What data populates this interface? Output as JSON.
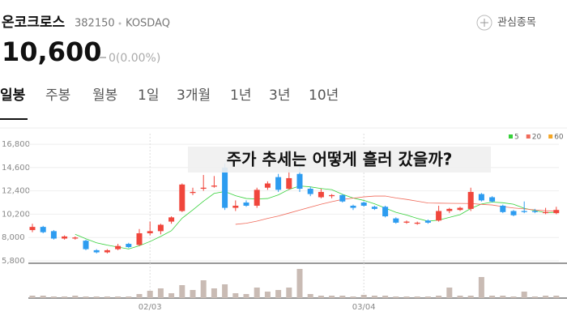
{
  "header": {
    "name": "온코크로스",
    "code": "382150",
    "market": "KOSDAQ",
    "watch": "관심종목",
    "price": "10,600",
    "change": "0(0.00%)"
  },
  "tabs": [
    "일봉",
    "주봉",
    "월봉",
    "1일",
    "3개월",
    "1년",
    "3년",
    "10년"
  ],
  "chart_data": {
    "type": "candlestick",
    "title": "주가 추세는 어떻게 흘러 갔을까?",
    "categories": [
      null,
      null,
      null,
      null,
      null,
      null,
      null,
      null,
      null,
      null,
      null,
      "02/03",
      null,
      null,
      null,
      null,
      null,
      null,
      null,
      null,
      null,
      null,
      null,
      null,
      null,
      null,
      null,
      null,
      null,
      null,
      null,
      "03/04",
      null,
      null,
      null,
      null,
      null,
      null,
      null,
      null,
      null,
      null,
      null,
      null,
      null,
      null,
      null,
      null,
      null,
      null
    ],
    "open": [
      8700,
      9000,
      8600,
      7900,
      7900,
      7700,
      6800,
      6600,
      6900,
      7400,
      7300,
      8400,
      8600,
      9500,
      10500,
      12200,
      12600,
      12800,
      14600,
      10800,
      11300,
      11000,
      12700,
      13700,
      12600,
      14000,
      12600,
      11800,
      11900,
      12000,
      11000,
      11300,
      10900,
      10900,
      9800,
      9400,
      9300,
      9600,
      9600,
      10500,
      10600,
      10700,
      12100,
      11800,
      11000,
      10500,
      10500,
      10500,
      10300,
      10300
    ],
    "high": [
      9300,
      9100,
      8700,
      8200,
      8100,
      7800,
      6900,
      6900,
      7400,
      7500,
      8800,
      9500,
      9300,
      10000,
      13100,
      12700,
      13900,
      13800,
      15000,
      11500,
      11500,
      12700,
      13300,
      14000,
      14400,
      15000,
      12800,
      12600,
      12100,
      12100,
      11100,
      11400,
      11000,
      11000,
      9900,
      9600,
      9500,
      9700,
      11000,
      10800,
      10900,
      12700,
      12200,
      11900,
      11100,
      10600,
      11400,
      10700,
      10800,
      10900
    ],
    "low": [
      8500,
      8400,
      7800,
      7800,
      7800,
      6800,
      6500,
      6500,
      6800,
      7000,
      7200,
      8200,
      8300,
      9300,
      10400,
      12000,
      12400,
      12700,
      10600,
      10500,
      10900,
      10800,
      12500,
      12300,
      12500,
      12300,
      11900,
      11700,
      11700,
      11300,
      10600,
      10900,
      10600,
      9900,
      9300,
      9300,
      9200,
      9300,
      9500,
      10300,
      10500,
      10500,
      11400,
      11300,
      10300,
      10000,
      10300,
      10300,
      10200,
      10200
    ],
    "close": [
      9000,
      8500,
      7900,
      8100,
      8000,
      6900,
      6600,
      6800,
      7200,
      7100,
      8400,
      8600,
      9200,
      9900,
      13000,
      12300,
      12700,
      12900,
      10800,
      11000,
      11000,
      12500,
      13100,
      12500,
      13600,
      12600,
      12100,
      12300,
      12000,
      11400,
      10800,
      11000,
      10700,
      10000,
      9400,
      9500,
      9400,
      9400,
      10500,
      10700,
      10800,
      12300,
      11500,
      11400,
      10400,
      10100,
      10400,
      10400,
      10400,
      10600
    ],
    "volume": [
      3,
      3,
      2,
      2,
      3,
      2,
      2,
      2,
      2,
      2,
      5,
      9,
      12,
      6,
      16,
      10,
      22,
      12,
      17,
      6,
      5,
      13,
      8,
      10,
      13,
      36,
      5,
      3,
      3,
      3,
      2,
      4,
      3,
      3,
      2,
      2,
      2,
      2,
      3,
      13,
      3,
      3,
      26,
      3,
      3,
      2,
      8,
      2,
      3,
      3
    ],
    "volume_lim": [
      0,
      40
    ],
    "up_color": "#f0463c",
    "down_color": "#2d9cf0",
    "volume_color": "#c9bbb4",
    "ylim": [
      5800,
      17800
    ],
    "yticks": [
      {
        "value": 5800,
        "label": "5,800"
      },
      {
        "value": 8000,
        "label": "8,000"
      },
      {
        "value": 10200,
        "label": "10,200"
      },
      {
        "value": 12400,
        "label": "12,400"
      },
      {
        "value": 14600,
        "label": "14,600"
      },
      {
        "value": 16800,
        "label": "16,800"
      }
    ],
    "grid": true,
    "moving_averages": [
      {
        "name": "5",
        "color": "#36d13a"
      },
      {
        "name": "20",
        "color": "#f06a5a"
      },
      {
        "name": "60",
        "color": "#f5a623"
      }
    ]
  }
}
